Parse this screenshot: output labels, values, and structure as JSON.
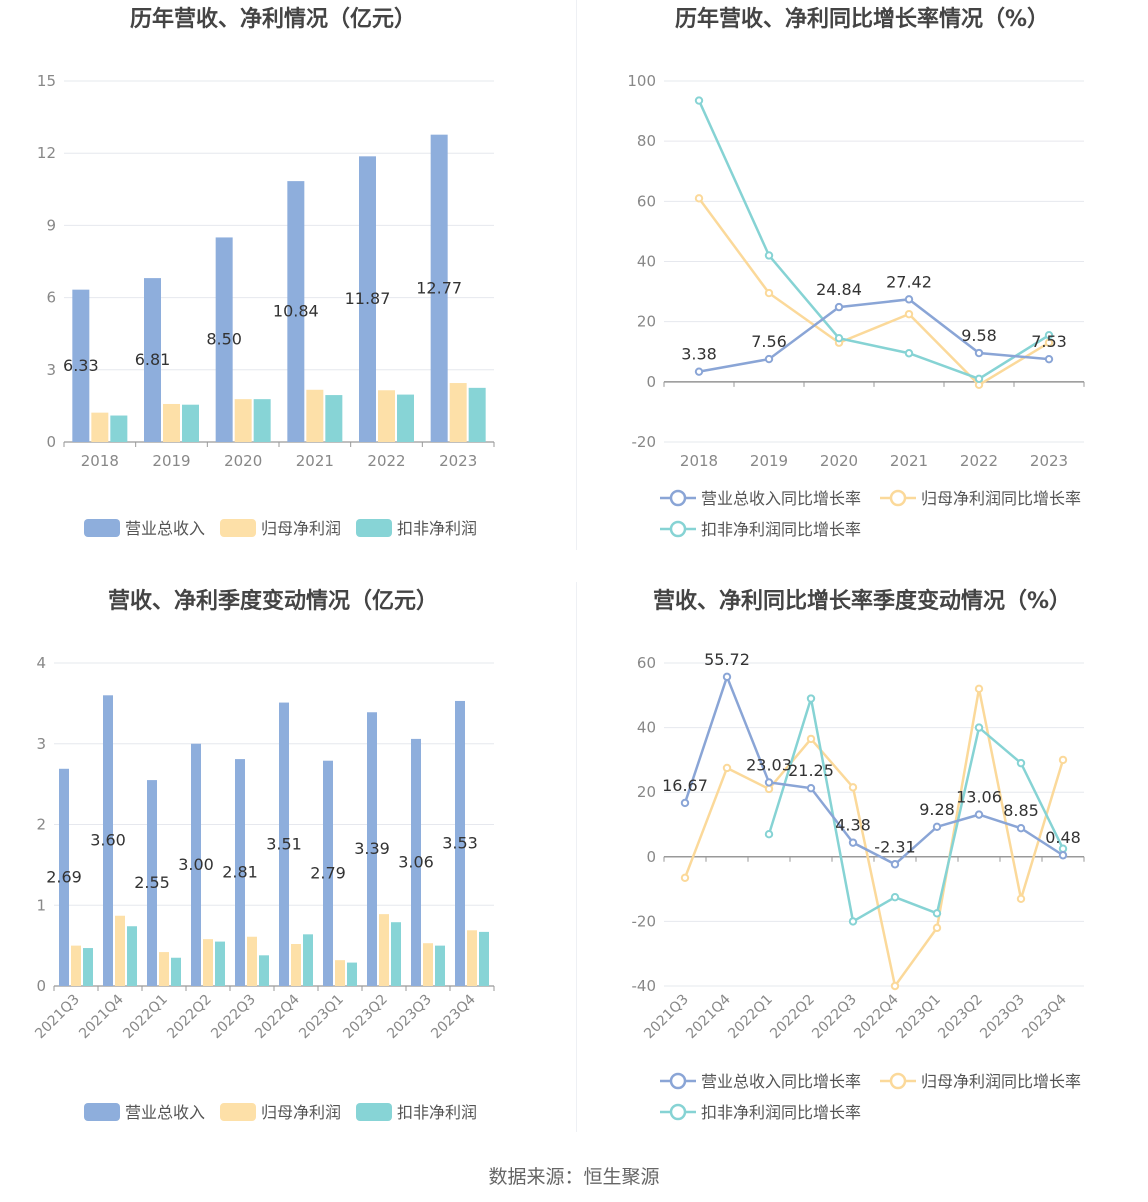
{
  "source": {
    "label": "数据来源：",
    "value": "恒生聚源"
  },
  "legend_bar": [
    "营业总收入",
    "归母净利润",
    "扣非净利润"
  ],
  "legend_line": [
    "营业总收入同比增长率",
    "归母净利润同比增长率",
    "扣非净利润同比增长率"
  ],
  "colors": {
    "revenue": "#8eaedc",
    "net_profit": "#fde0a8",
    "deducted_profit": "#87d4d6",
    "revenue_line": "#8aa5d6",
    "net_profit_line": "#fbd99a",
    "deducted_profit_line": "#86d3d4"
  },
  "chart_data": [
    {
      "type": "bar",
      "title": "历年营收、净利情况（亿元）",
      "categories": [
        "2018",
        "2019",
        "2020",
        "2021",
        "2022",
        "2023"
      ],
      "ylim": [
        0,
        15
      ],
      "yticks": [
        0,
        3,
        6,
        9,
        12,
        15
      ],
      "series": [
        {
          "name": "营业总收入",
          "values": [
            6.33,
            6.81,
            8.5,
            10.84,
            11.87,
            12.77
          ],
          "labels": [
            "6.33",
            "6.81",
            "8.50",
            "10.84",
            "11.87",
            "12.77"
          ]
        },
        {
          "name": "归母净利润",
          "values": [
            1.22,
            1.58,
            1.78,
            2.17,
            2.15,
            2.45
          ]
        },
        {
          "name": "扣非净利润",
          "values": [
            1.1,
            1.55,
            1.78,
            1.95,
            1.97,
            2.25
          ]
        }
      ],
      "legend": "bottom",
      "grid": true
    },
    {
      "type": "line",
      "title": "历年营收、净利同比增长率情况（%）",
      "categories": [
        "2018",
        "2019",
        "2020",
        "2021",
        "2022",
        "2023"
      ],
      "ylim": [
        -20,
        100
      ],
      "yticks": [
        -20,
        0,
        20,
        40,
        60,
        80,
        100
      ],
      "series": [
        {
          "name": "营业总收入同比增长率",
          "values": [
            3.38,
            7.56,
            24.84,
            27.42,
            9.58,
            7.53
          ],
          "labels": [
            "3.38",
            "7.56",
            "24.84",
            "27.42",
            "9.58",
            "7.53"
          ]
        },
        {
          "name": "归母净利润同比增长率",
          "values": [
            61,
            29.5,
            13,
            22.5,
            -1,
            13
          ]
        },
        {
          "name": "扣非净利润同比增长率",
          "values": [
            93.5,
            42,
            14.5,
            9.5,
            1,
            15.5
          ]
        }
      ],
      "legend": "bottom",
      "grid": true
    },
    {
      "type": "bar",
      "title": "营收、净利季度变动情况（亿元）",
      "categories": [
        "2021Q3",
        "2021Q4",
        "2022Q1",
        "2022Q2",
        "2022Q3",
        "2022Q4",
        "2023Q1",
        "2023Q2",
        "2023Q3",
        "2023Q4"
      ],
      "ylim": [
        0,
        4
      ],
      "yticks": [
        0,
        1,
        2,
        3,
        4
      ],
      "series": [
        {
          "name": "营业总收入",
          "values": [
            2.69,
            3.6,
            2.55,
            3.0,
            2.81,
            3.51,
            2.79,
            3.39,
            3.06,
            3.53
          ],
          "labels": [
            "2.69",
            "3.60",
            "2.55",
            "3.00",
            "2.81",
            "3.51",
            "2.79",
            "3.39",
            "3.06",
            "3.53"
          ]
        },
        {
          "name": "归母净利润",
          "values": [
            0.5,
            0.87,
            0.42,
            0.58,
            0.61,
            0.52,
            0.32,
            0.89,
            0.53,
            0.69
          ]
        },
        {
          "name": "扣非净利润",
          "values": [
            0.47,
            0.74,
            0.35,
            0.55,
            0.38,
            0.64,
            0.29,
            0.79,
            0.5,
            0.67
          ]
        }
      ],
      "legend": "bottom",
      "grid": true
    },
    {
      "type": "line",
      "title": "营收、净利同比增长率季度变动情况（%）",
      "categories": [
        "2021Q3",
        "2021Q4",
        "2022Q1",
        "2022Q2",
        "2022Q3",
        "2022Q4",
        "2023Q1",
        "2023Q2",
        "2023Q3",
        "2023Q4"
      ],
      "ylim": [
        -40,
        60
      ],
      "yticks": [
        -40,
        -20,
        0,
        20,
        40,
        60
      ],
      "series": [
        {
          "name": "营业总收入同比增长率",
          "values": [
            16.67,
            55.72,
            23.03,
            21.25,
            4.38,
            -2.31,
            9.28,
            13.06,
            8.85,
            0.48
          ],
          "labels": [
            "16.67",
            "55.72",
            "23.03",
            "21.25",
            "4.38",
            "-2.31",
            "9.28",
            "13.06",
            "8.85",
            "0.48"
          ]
        },
        {
          "name": "归母净利润同比增长率",
          "values": [
            -6.5,
            27.5,
            21,
            36.5,
            21.5,
            -40,
            -22,
            52,
            -13,
            30
          ]
        },
        {
          "name": "扣非净利润同比增长率",
          "values": [
            null,
            null,
            7,
            49,
            -20,
            -12.5,
            -17.5,
            40,
            29,
            2.5
          ]
        }
      ],
      "legend": "bottom",
      "grid": true
    }
  ]
}
